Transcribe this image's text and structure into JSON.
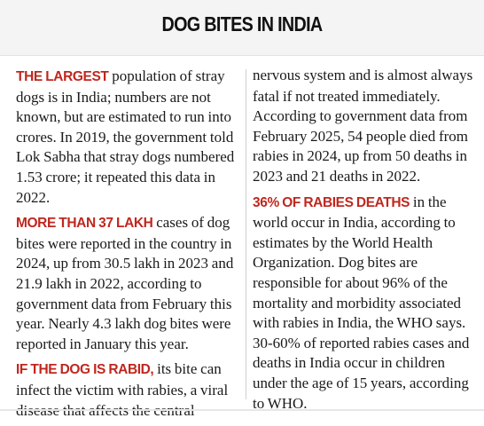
{
  "title": "DOG BITES IN INDIA",
  "accent_color": "#c0271e",
  "left_column": [
    {
      "lead": "THE LARGEST",
      "text": " population of stray dogs is in India; numbers are not known, but are estimated to run into crores. In 2019, the government told Lok Sabha that stray dogs numbered 1.53 crore; it repeated this data in 2022."
    },
    {
      "lead": "MORE THAN 37 LAKH",
      "text": " cases of dog bites were reported in the country in 2024, up from 30.5 lakh in 2023 and 21.9 lakh in 2022, according to government data from February this year. Nearly 4.3 lakh dog bites were reported in January this year."
    },
    {
      "lead": "IF THE DOG IS RABID,",
      "text": " its bite can infect the victim with rabies, a viral disease that affects the central"
    }
  ],
  "right_column": [
    {
      "lead": "",
      "text": "nervous system and is almost always fatal if not treated immediately. According to government data from February 2025, 54 people died from rabies in 2024, up from 50 deaths in 2023 and 21 deaths in 2022."
    },
    {
      "lead": "36% OF RABIES DEATHS",
      "text": " in the world occur in India, according to estimates by the World Health Organization. Dog bites are responsible for about 96% of the mortality and morbidity associated with rabies in India, the WHO says. 30-60% of reported rabies cases and deaths in India occur in children under the age of 15 years, according to WHO."
    }
  ]
}
